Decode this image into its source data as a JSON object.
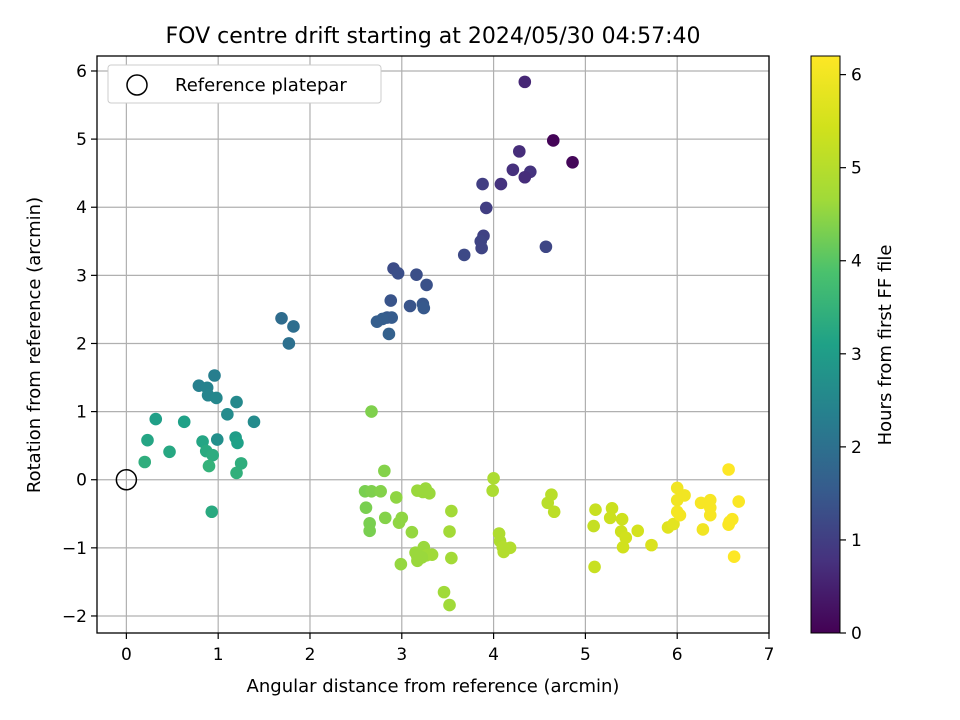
{
  "chart_data": {
    "type": "scatter",
    "title": "FOV centre drift starting at 2024/05/30 04:57:40",
    "xlabel": "Angular distance from reference (arcmin)",
    "ylabel": "Rotation from reference (arcmin)",
    "xlim": [
      -0.32,
      7.0
    ],
    "ylim": [
      -2.25,
      6.22
    ],
    "xticks": [
      0,
      1,
      2,
      3,
      4,
      5,
      6,
      7
    ],
    "yticks": [
      -2,
      -1,
      0,
      1,
      2,
      3,
      4,
      5,
      6
    ],
    "grid": true,
    "legend": {
      "position": "top-left",
      "entries": [
        "Reference platepar"
      ]
    },
    "reference_point": {
      "x": 0,
      "y": 0
    },
    "colorbar": {
      "label": "Hours from first FF file",
      "range": [
        0,
        6.2
      ],
      "ticks": [
        0,
        1,
        2,
        3,
        4,
        5,
        6
      ],
      "colormap": "viridis"
    },
    "points": [
      {
        "x": 4.34,
        "y": 5.84,
        "c": 0.6
      },
      {
        "x": 4.65,
        "y": 4.98,
        "c": 0.05
      },
      {
        "x": 4.86,
        "y": 4.66,
        "c": 0.1
      },
      {
        "x": 4.28,
        "y": 4.82,
        "c": 0.7
      },
      {
        "x": 4.21,
        "y": 4.55,
        "c": 0.75
      },
      {
        "x": 4.4,
        "y": 4.52,
        "c": 0.8
      },
      {
        "x": 4.34,
        "y": 4.44,
        "c": 0.7
      },
      {
        "x": 4.08,
        "y": 4.34,
        "c": 0.8
      },
      {
        "x": 3.88,
        "y": 4.34,
        "c": 1.0
      },
      {
        "x": 3.92,
        "y": 3.99,
        "c": 1.0
      },
      {
        "x": 3.89,
        "y": 3.58,
        "c": 1.05
      },
      {
        "x": 3.86,
        "y": 3.5,
        "c": 1.1
      },
      {
        "x": 3.87,
        "y": 3.4,
        "c": 1.1
      },
      {
        "x": 4.57,
        "y": 3.42,
        "c": 1.15
      },
      {
        "x": 3.68,
        "y": 3.3,
        "c": 1.2
      },
      {
        "x": 2.91,
        "y": 3.1,
        "c": 1.25
      },
      {
        "x": 2.96,
        "y": 3.03,
        "c": 1.3
      },
      {
        "x": 3.16,
        "y": 3.01,
        "c": 1.3
      },
      {
        "x": 3.27,
        "y": 2.86,
        "c": 1.35
      },
      {
        "x": 2.88,
        "y": 2.63,
        "c": 1.4
      },
      {
        "x": 3.09,
        "y": 2.55,
        "c": 1.4
      },
      {
        "x": 3.23,
        "y": 2.58,
        "c": 1.45
      },
      {
        "x": 3.24,
        "y": 2.52,
        "c": 1.5
      },
      {
        "x": 2.84,
        "y": 2.38,
        "c": 1.5
      },
      {
        "x": 2.89,
        "y": 2.38,
        "c": 1.55
      },
      {
        "x": 2.79,
        "y": 2.36,
        "c": 1.6
      },
      {
        "x": 2.73,
        "y": 2.32,
        "c": 1.6
      },
      {
        "x": 2.86,
        "y": 2.14,
        "c": 1.65
      },
      {
        "x": 1.69,
        "y": 2.37,
        "c": 1.9
      },
      {
        "x": 1.82,
        "y": 2.25,
        "c": 1.95
      },
      {
        "x": 1.77,
        "y": 2.0,
        "c": 2.0
      },
      {
        "x": 0.96,
        "y": 1.53,
        "c": 2.3
      },
      {
        "x": 0.79,
        "y": 1.38,
        "c": 2.35
      },
      {
        "x": 0.88,
        "y": 1.35,
        "c": 2.4
      },
      {
        "x": 0.89,
        "y": 1.24,
        "c": 2.45
      },
      {
        "x": 0.98,
        "y": 1.2,
        "c": 2.5
      },
      {
        "x": 1.2,
        "y": 1.14,
        "c": 2.55
      },
      {
        "x": 1.1,
        "y": 0.96,
        "c": 2.6
      },
      {
        "x": 1.39,
        "y": 0.85,
        "c": 2.6
      },
      {
        "x": 0.32,
        "y": 0.89,
        "c": 3.05
      },
      {
        "x": 0.63,
        "y": 0.85,
        "c": 3.1
      },
      {
        "x": 0.99,
        "y": 0.59,
        "c": 2.7
      },
      {
        "x": 1.19,
        "y": 0.62,
        "c": 3.0
      },
      {
        "x": 0.83,
        "y": 0.56,
        "c": 3.2
      },
      {
        "x": 1.21,
        "y": 0.54,
        "c": 3.1
      },
      {
        "x": 0.23,
        "y": 0.58,
        "c": 3.2
      },
      {
        "x": 0.47,
        "y": 0.41,
        "c": 3.25
      },
      {
        "x": 0.87,
        "y": 0.42,
        "c": 3.3
      },
      {
        "x": 0.94,
        "y": 0.36,
        "c": 3.35
      },
      {
        "x": 0.2,
        "y": 0.26,
        "c": 3.4
      },
      {
        "x": 1.25,
        "y": 0.24,
        "c": 3.4
      },
      {
        "x": 0.9,
        "y": 0.2,
        "c": 3.5
      },
      {
        "x": 1.2,
        "y": 0.1,
        "c": 3.45
      },
      {
        "x": 0.93,
        "y": -0.47,
        "c": 3.3
      },
      {
        "x": 2.67,
        "y": 1.0,
        "c": 4.35
      },
      {
        "x": 2.81,
        "y": 0.13,
        "c": 4.4
      },
      {
        "x": 2.6,
        "y": -0.17,
        "c": 4.3
      },
      {
        "x": 2.67,
        "y": -0.17,
        "c": 4.35
      },
      {
        "x": 2.77,
        "y": -0.17,
        "c": 4.4
      },
      {
        "x": 2.94,
        "y": -0.26,
        "c": 4.5
      },
      {
        "x": 2.61,
        "y": -0.41,
        "c": 4.3
      },
      {
        "x": 2.82,
        "y": -0.56,
        "c": 4.4
      },
      {
        "x": 3.0,
        "y": -0.56,
        "c": 4.5
      },
      {
        "x": 2.97,
        "y": -0.63,
        "c": 4.5
      },
      {
        "x": 2.65,
        "y": -0.64,
        "c": 4.3
      },
      {
        "x": 2.65,
        "y": -0.75,
        "c": 4.3
      },
      {
        "x": 3.11,
        "y": -0.77,
        "c": 4.55
      },
      {
        "x": 3.17,
        "y": -0.16,
        "c": 4.6
      },
      {
        "x": 3.23,
        "y": -0.18,
        "c": 4.6
      },
      {
        "x": 3.26,
        "y": -0.13,
        "c": 4.6
      },
      {
        "x": 3.3,
        "y": -0.2,
        "c": 4.6
      },
      {
        "x": 3.54,
        "y": -0.46,
        "c": 4.7
      },
      {
        "x": 3.52,
        "y": -0.76,
        "c": 4.7
      },
      {
        "x": 3.24,
        "y": -0.99,
        "c": 4.6
      },
      {
        "x": 3.15,
        "y": -1.07,
        "c": 4.6
      },
      {
        "x": 3.22,
        "y": -1.09,
        "c": 4.6
      },
      {
        "x": 3.27,
        "y": -1.11,
        "c": 4.65
      },
      {
        "x": 3.33,
        "y": -1.1,
        "c": 4.65
      },
      {
        "x": 3.17,
        "y": -1.13,
        "c": 4.6
      },
      {
        "x": 3.22,
        "y": -1.14,
        "c": 4.6
      },
      {
        "x": 3.54,
        "y": -1.15,
        "c": 4.7
      },
      {
        "x": 3.17,
        "y": -1.19,
        "c": 4.6
      },
      {
        "x": 2.99,
        "y": -1.24,
        "c": 4.55
      },
      {
        "x": 3.46,
        "y": -1.65,
        "c": 4.65
      },
      {
        "x": 3.52,
        "y": -1.84,
        "c": 4.65
      },
      {
        "x": 4.0,
        "y": 0.02,
        "c": 4.85
      },
      {
        "x": 3.99,
        "y": -0.16,
        "c": 4.85
      },
      {
        "x": 4.06,
        "y": -0.79,
        "c": 4.9
      },
      {
        "x": 4.07,
        "y": -0.9,
        "c": 4.9
      },
      {
        "x": 4.18,
        "y": -1.0,
        "c": 4.95
      },
      {
        "x": 4.1,
        "y": -0.99,
        "c": 4.95
      },
      {
        "x": 4.11,
        "y": -1.06,
        "c": 4.95
      },
      {
        "x": 4.63,
        "y": -0.22,
        "c": 5.05
      },
      {
        "x": 4.59,
        "y": -0.34,
        "c": 5.05
      },
      {
        "x": 4.66,
        "y": -0.47,
        "c": 5.1
      },
      {
        "x": 5.11,
        "y": -0.44,
        "c": 5.3
      },
      {
        "x": 5.29,
        "y": -0.42,
        "c": 5.35
      },
      {
        "x": 5.27,
        "y": -0.56,
        "c": 5.35
      },
      {
        "x": 5.4,
        "y": -0.58,
        "c": 5.4
      },
      {
        "x": 5.09,
        "y": -0.68,
        "c": 5.25
      },
      {
        "x": 5.39,
        "y": -0.76,
        "c": 5.4
      },
      {
        "x": 5.44,
        "y": -0.85,
        "c": 5.45
      },
      {
        "x": 5.57,
        "y": -0.75,
        "c": 5.5
      },
      {
        "x": 5.41,
        "y": -0.99,
        "c": 5.45
      },
      {
        "x": 5.72,
        "y": -0.96,
        "c": 5.6
      },
      {
        "x": 5.1,
        "y": -1.28,
        "c": 5.3
      },
      {
        "x": 5.9,
        "y": -0.7,
        "c": 5.7
      },
      {
        "x": 5.96,
        "y": -0.65,
        "c": 5.75
      },
      {
        "x": 6.0,
        "y": -0.12,
        "c": 6.0
      },
      {
        "x": 6.0,
        "y": -0.3,
        "c": 6.0
      },
      {
        "x": 6.08,
        "y": -0.23,
        "c": 6.0
      },
      {
        "x": 6.0,
        "y": -0.47,
        "c": 6.05
      },
      {
        "x": 6.03,
        "y": -0.52,
        "c": 6.05
      },
      {
        "x": 6.26,
        "y": -0.34,
        "c": 6.1
      },
      {
        "x": 6.36,
        "y": -0.3,
        "c": 6.1
      },
      {
        "x": 6.36,
        "y": -0.41,
        "c": 6.1
      },
      {
        "x": 6.36,
        "y": -0.52,
        "c": 6.1
      },
      {
        "x": 6.28,
        "y": -0.73,
        "c": 6.0
      },
      {
        "x": 6.56,
        "y": 0.15,
        "c": 6.2
      },
      {
        "x": 6.67,
        "y": -0.32,
        "c": 6.15
      },
      {
        "x": 6.57,
        "y": -0.62,
        "c": 6.15
      },
      {
        "x": 6.6,
        "y": -0.58,
        "c": 6.15
      },
      {
        "x": 6.56,
        "y": -0.66,
        "c": 6.15
      },
      {
        "x": 6.62,
        "y": -1.13,
        "c": 6.2
      }
    ]
  }
}
